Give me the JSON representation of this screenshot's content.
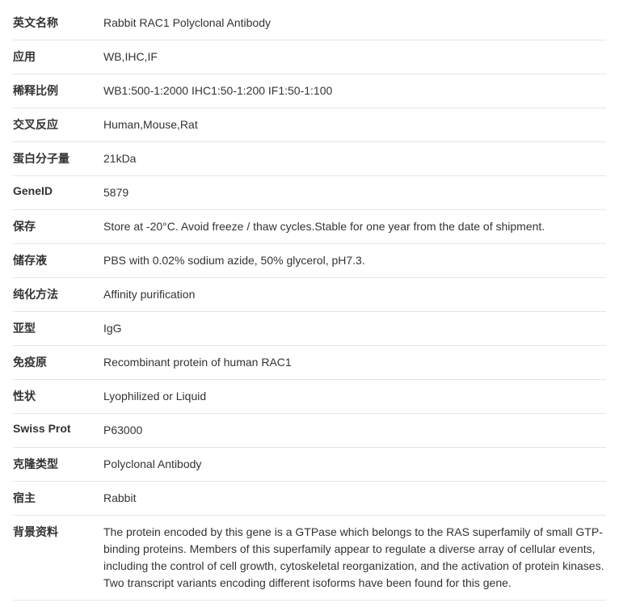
{
  "rows": [
    {
      "label": "英文名称",
      "value": "Rabbit RAC1 Polyclonal Antibody"
    },
    {
      "label": "应用",
      "value": "WB,IHC,IF"
    },
    {
      "label": "稀释比例",
      "value": "WB1:500-1:2000 IHC1:50-1:200 IF1:50-1:100"
    },
    {
      "label": "交叉反应",
      "value": "Human,Mouse,Rat"
    },
    {
      "label": "蛋白分子量",
      "value": "21kDa"
    },
    {
      "label": "GeneID",
      "value": "5879"
    },
    {
      "label": "保存",
      "value": "Store at -20°C. Avoid freeze / thaw cycles.Stable for one year from the date of shipment."
    },
    {
      "label": "储存液",
      "value": "PBS with 0.02% sodium azide, 50% glycerol, pH7.3."
    },
    {
      "label": "纯化方法",
      "value": "Affinity purification"
    },
    {
      "label": "亚型",
      "value": "IgG"
    },
    {
      "label": "免疫原",
      "value": "Recombinant protein of human RAC1"
    },
    {
      "label": "性状",
      "value": "Lyophilized or Liquid"
    },
    {
      "label": "Swiss Prot",
      "value": "P63000"
    },
    {
      "label": "克隆类型",
      "value": "Polyclonal Antibody"
    },
    {
      "label": "宿主",
      "value": "Rabbit"
    },
    {
      "label": "背景资料",
      "value": "The protein encoded by this gene is a GTPase which belongs to the RAS superfamily of small GTP-binding proteins. Members of this superfamily appear to regulate a diverse array of cellular events, including the control of cell growth, cytoskeletal reorganization, and the activation of protein kinases. Two transcript variants encoding different isoforms have been found for this gene."
    }
  ]
}
